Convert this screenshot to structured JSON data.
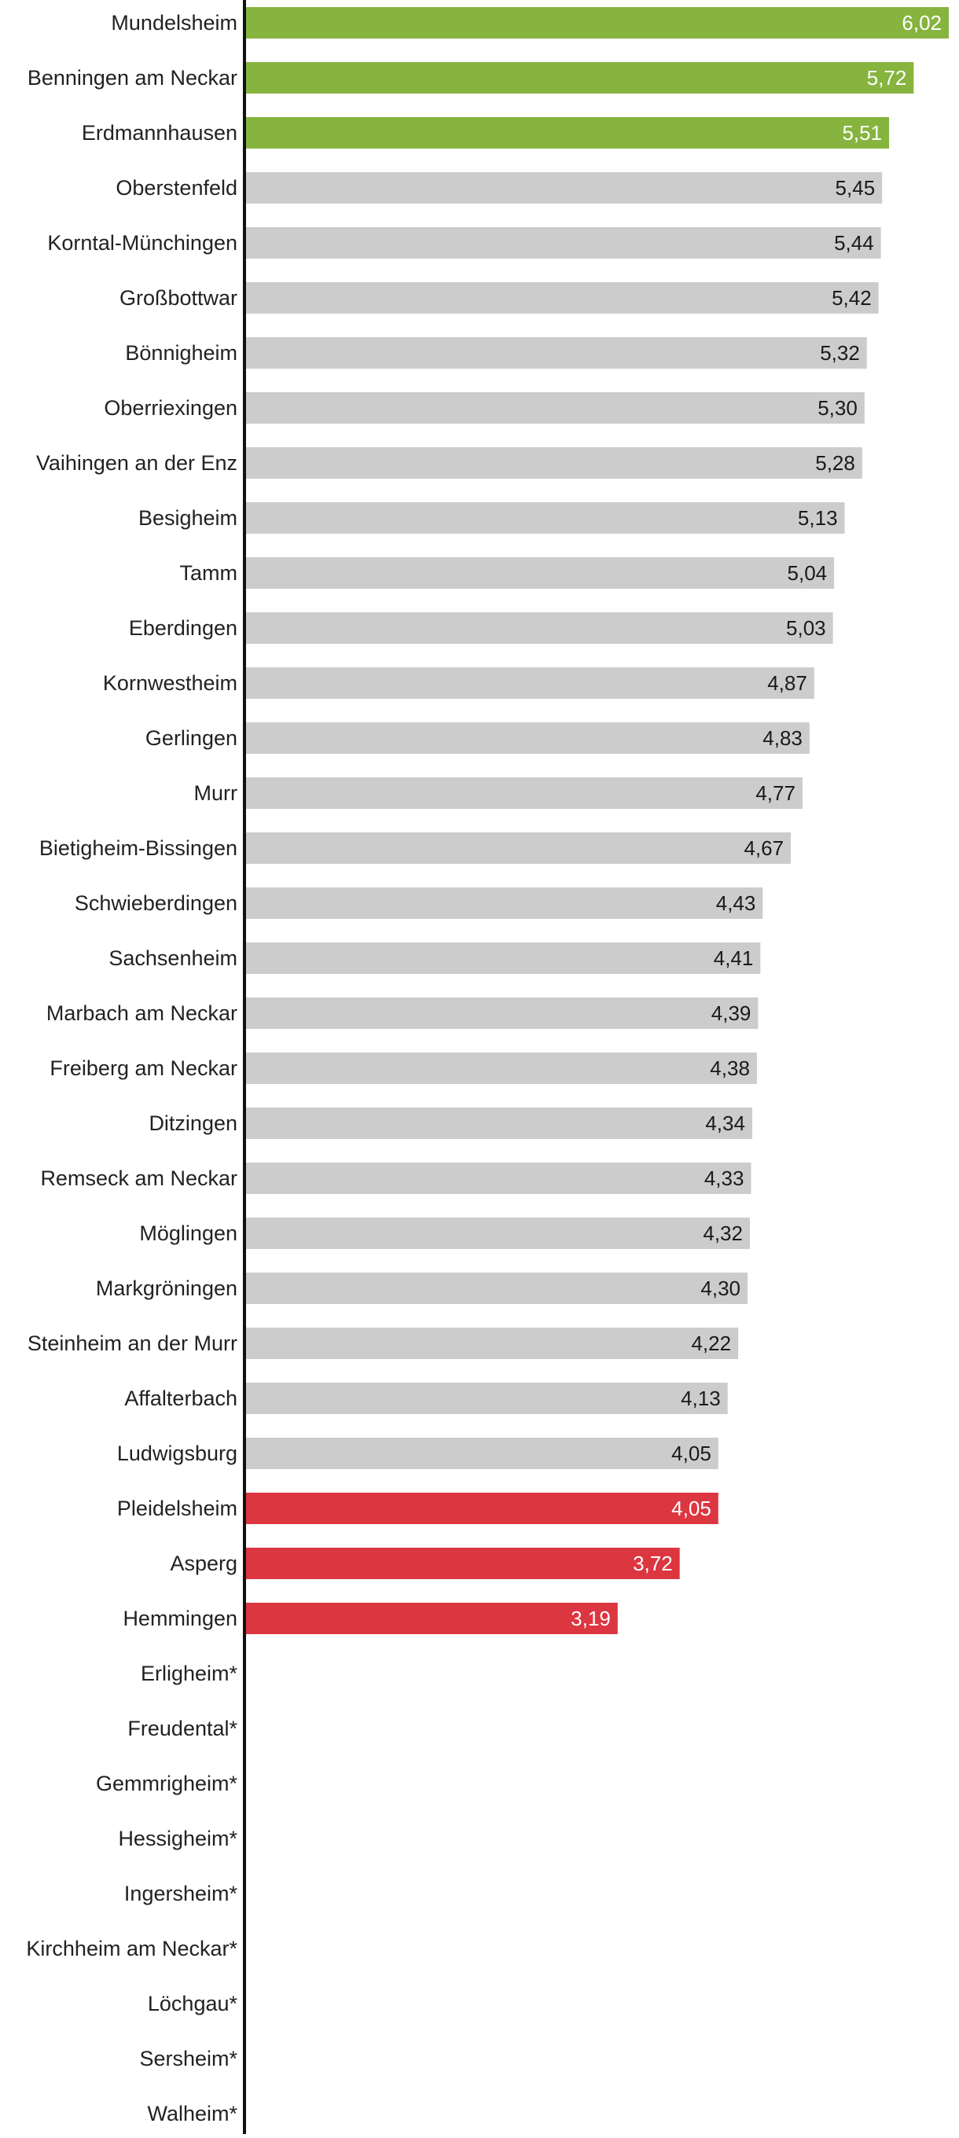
{
  "chart_data": {
    "type": "bar",
    "orientation": "horizontal",
    "categories": [
      "Mundelsheim",
      "Benningen am Neckar",
      "Erdmannhausen",
      "Oberstenfeld",
      "Korntal-Münchingen",
      "Großbottwar",
      "Bönnigheim",
      "Oberriexingen",
      "Vaihingen an der Enz",
      "Besigheim",
      "Tamm",
      "Eberdingen",
      "Kornwestheim",
      "Gerlingen",
      "Murr",
      "Bietigheim-Bissingen",
      "Schwieberdingen",
      "Sachsenheim",
      "Marbach am Neckar",
      "Freiberg am Neckar",
      "Ditzingen",
      "Remseck am Neckar",
      "Möglingen",
      "Markgröningen",
      "Steinheim an der Murr",
      "Affalterbach",
      "Ludwigsburg",
      "Pleidelsheim",
      "Asperg",
      "Hemmingen",
      "Erligheim*",
      "Freudental*",
      "Gemmrigheim*",
      "Hessigheim*",
      "Ingersheim*",
      "Kirchheim am Neckar*",
      "Löchgau*",
      "Sersheim*",
      "Walheim*"
    ],
    "values": [
      6.02,
      5.72,
      5.51,
      5.45,
      5.44,
      5.42,
      5.32,
      5.3,
      5.28,
      5.13,
      5.04,
      5.03,
      4.87,
      4.83,
      4.77,
      4.67,
      4.43,
      4.41,
      4.39,
      4.38,
      4.34,
      4.33,
      4.32,
      4.3,
      4.22,
      4.13,
      4.05,
      4.05,
      3.72,
      3.19,
      null,
      null,
      null,
      null,
      null,
      null,
      null,
      null,
      null
    ],
    "value_labels": [
      "6,02",
      "5,72",
      "5,51",
      "5,45",
      "5,44",
      "5,42",
      "5,32",
      "5,30",
      "5,28",
      "5,13",
      "5,04",
      "5,03",
      "4,87",
      "4,83",
      "4,77",
      "4,67",
      "4,43",
      "4,41",
      "4,39",
      "4,38",
      "4,34",
      "4,33",
      "4,32",
      "4,30",
      "4,22",
      "4,13",
      "4,05",
      "4,05",
      "3,72",
      "3,19",
      "",
      "",
      "",
      "",
      "",
      "",
      "",
      "",
      ""
    ],
    "highlight": [
      "top",
      "top",
      "top",
      "mid",
      "mid",
      "mid",
      "mid",
      "mid",
      "mid",
      "mid",
      "mid",
      "mid",
      "mid",
      "mid",
      "mid",
      "mid",
      "mid",
      "mid",
      "mid",
      "mid",
      "mid",
      "mid",
      "mid",
      "mid",
      "mid",
      "mid",
      "mid",
      "low",
      "low",
      "low",
      "none",
      "none",
      "none",
      "none",
      "none",
      "none",
      "none",
      "none",
      "none"
    ],
    "colors": {
      "top": "#86b43f",
      "mid": "#cccccc",
      "low": "#dc3641",
      "label_on_color": "#ffffff",
      "label_on_gray": "#1a1a1a",
      "axis": "#111111"
    },
    "xlim": [
      0,
      6.02
    ],
    "grid": false,
    "title": "",
    "xlabel": "",
    "ylabel": ""
  }
}
